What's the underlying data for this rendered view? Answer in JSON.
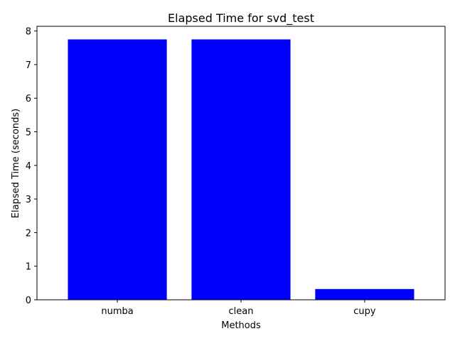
{
  "chart_data": {
    "type": "bar",
    "title": "Elapsed Time for svd_test",
    "xlabel": "Methods",
    "ylabel": "Elapsed Time (seconds)",
    "categories": [
      "numba",
      "clean",
      "cupy"
    ],
    "values": [
      7.75,
      7.75,
      0.32
    ],
    "ylim": [
      0,
      8.14
    ],
    "yticks": [
      0,
      1,
      2,
      3,
      4,
      5,
      6,
      7,
      8
    ],
    "bar_color": "#0000ff",
    "grid": false,
    "legend": "none"
  }
}
